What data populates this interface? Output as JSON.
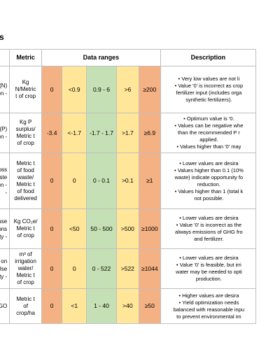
{
  "section_heading": "s",
  "table": {
    "headers": {
      "metric": "Metric",
      "data_ranges": "Data ranges",
      "description": "Description"
    },
    "rows": [
      {
        "indicator": [
          "r (N)",
          "ion -"
        ],
        "metric": [
          "Kg",
          "N/Metric",
          "t of crop"
        ],
        "ranges": [
          "0",
          "<0.9",
          "0.9 - 6",
          ">6",
          "≥200"
        ],
        "desc": [
          {
            "b": true,
            "t": "Very low values are not li"
          },
          {
            "b": true,
            "t": "Value '0' is incorrect as crop"
          },
          {
            "b": false,
            "t": "fertilizer input (includes orga"
          },
          {
            "b": false,
            "t": "synthetic fertilizers)."
          }
        ]
      },
      {
        "indicator": [
          "rer (P)",
          "ion -"
        ],
        "metric": [
          "Kg P",
          "surplus/",
          "Metric t",
          "of crop"
        ],
        "ranges": [
          "-3.4",
          "<-1.7",
          "-1.7 - 1.7",
          ">1.7",
          "≥6.9"
        ],
        "desc": [
          {
            "b": true,
            "t": "Optimum value is '0."
          },
          {
            "b": true,
            "t": "Values can be negative whe"
          },
          {
            "b": false,
            "t": "than the recommended P r"
          },
          {
            "b": false,
            "t": "applied."
          },
          {
            "b": true,
            "t": "Values higher than '0' may"
          }
        ]
      },
      {
        "indicator": [
          "oss",
          "aste",
          "ion -",
          "-"
        ],
        "metric": [
          "Metric t",
          "of food",
          "waste/",
          "Metric t",
          "of food",
          "delivered"
        ],
        "ranges": [
          "0",
          "0",
          "0 - 0.1",
          ">0.1",
          "≥1"
        ],
        "desc": [
          {
            "b": true,
            "t": "Lower values are desira"
          },
          {
            "b": true,
            "t": "Values higher than 0.1 (10%"
          },
          {
            "b": false,
            "t": "waste) indicate opportunity fo"
          },
          {
            "b": false,
            "t": "reduction."
          },
          {
            "b": true,
            "t": "Values higher than 1 (total k"
          },
          {
            "b": false,
            "t": "not possible."
          }
        ]
      },
      {
        "indicator": [
          "ouse",
          "ons",
          "ty -"
        ],
        "metric": [
          "Kg CO₂e/",
          "Metric t",
          "of crop"
        ],
        "ranges": [
          "0",
          "<50",
          "50 - 500",
          ">500",
          "≥1000"
        ],
        "desc": [
          {
            "b": true,
            "t": "Lower values are desira"
          },
          {
            "b": true,
            "t": "Value '0' is incorrect as the"
          },
          {
            "b": false,
            "t": "always emissions of GHG fro"
          },
          {
            "b": false,
            "t": "and fertilizer."
          }
        ]
      },
      {
        "indicator": [
          "on",
          "Use",
          "ty -"
        ],
        "metric": [
          "m³ of",
          "irrigation",
          "water/",
          "Metric t",
          "of crop"
        ],
        "ranges": [
          "0",
          "0",
          "0 - 522",
          ">522",
          "≥1044"
        ],
        "desc": [
          {
            "b": true,
            "t": "Lower values are desira"
          },
          {
            "b": true,
            "t": "Value '0' is feasible, but irri"
          },
          {
            "b": false,
            "t": "water may be needed to opti"
          },
          {
            "b": false,
            "t": "production."
          }
        ]
      },
      {
        "indicator": [
          "GO"
        ],
        "metric": [
          "Metric t",
          "of",
          "crop/ha"
        ],
        "ranges": [
          "0",
          "<1",
          "1 - 40",
          ">40",
          "≥50"
        ],
        "desc": [
          {
            "b": true,
            "t": "Higher values are desira"
          },
          {
            "b": true,
            "t": "Yield optimization needs"
          },
          {
            "b": false,
            "t": "balanced with reasonable inpu"
          },
          {
            "b": false,
            "t": "to prevent environmental im"
          }
        ]
      }
    ]
  }
}
